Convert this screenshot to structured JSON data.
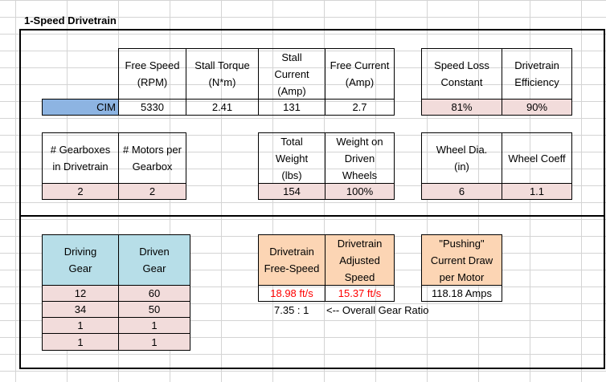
{
  "sheet": {
    "title": "1-Speed Drivetrain"
  },
  "motor": {
    "headers": {
      "free_speed": [
        "Free Speed",
        "(RPM)"
      ],
      "stall_torque": [
        "Stall Torque",
        "(N*m)"
      ],
      "stall_current": [
        "Stall",
        "Current",
        "(Amp)"
      ],
      "free_current": [
        "Free Current",
        "(Amp)"
      ]
    },
    "name": "CIM",
    "free_speed": "5330",
    "stall_torque": "2.41",
    "stall_current": "131",
    "free_current": "2.7"
  },
  "efficiency": {
    "headers": {
      "speed_loss": [
        "Speed Loss",
        "Constant"
      ],
      "drivetrain_eff": [
        "Drivetrain",
        "Efficiency"
      ]
    },
    "speed_loss": "81%",
    "drivetrain_eff": "90%"
  },
  "gearbox": {
    "headers": {
      "num_gearboxes": [
        "# Gearboxes",
        "in Drivetrain"
      ],
      "motors_per": [
        "# Motors per",
        "Gearbox"
      ]
    },
    "num_gearboxes": "2",
    "motors_per": "2"
  },
  "weight": {
    "headers": {
      "total": [
        "Total",
        "Weight",
        "(lbs)"
      ],
      "on_driven": [
        "Weight on",
        "Driven",
        "Wheels"
      ]
    },
    "total": "154",
    "on_driven": "100%"
  },
  "wheel": {
    "headers": {
      "dia": [
        "Wheel Dia.",
        "(in)"
      ],
      "coeff": [
        "Wheel Coeff"
      ]
    },
    "dia": "6",
    "coeff": "1.1"
  },
  "gears": {
    "headers": {
      "driving": [
        "Driving",
        "Gear"
      ],
      "driven": [
        "Driven",
        "Gear"
      ]
    },
    "rows": [
      {
        "driving": "12",
        "driven": "60"
      },
      {
        "driving": "34",
        "driven": "50"
      },
      {
        "driving": "1",
        "driven": "1"
      },
      {
        "driving": "1",
        "driven": "1"
      }
    ]
  },
  "results": {
    "headers": {
      "free_speed": [
        "Drivetrain",
        "Free-Speed"
      ],
      "adjusted_speed": [
        "Drivetrain",
        "Adjusted",
        "Speed"
      ],
      "pushing_current": [
        "\"Pushing\"",
        "Current Draw",
        "per Motor"
      ]
    },
    "free_speed": "18.98 ft/s",
    "adjusted_speed": "15.37 ft/s",
    "pushing_current": "118.18 Amps",
    "gear_ratio": "7.35 : 1",
    "gear_ratio_label": "<-- Overall Gear Ratio"
  },
  "colors": {
    "input_pink": "#f2dcdb",
    "gear_blue": "#b7dee8",
    "result_orange": "#fcd5b4",
    "motor_blue": "#8db4e2",
    "result_red": "#ff0000"
  }
}
